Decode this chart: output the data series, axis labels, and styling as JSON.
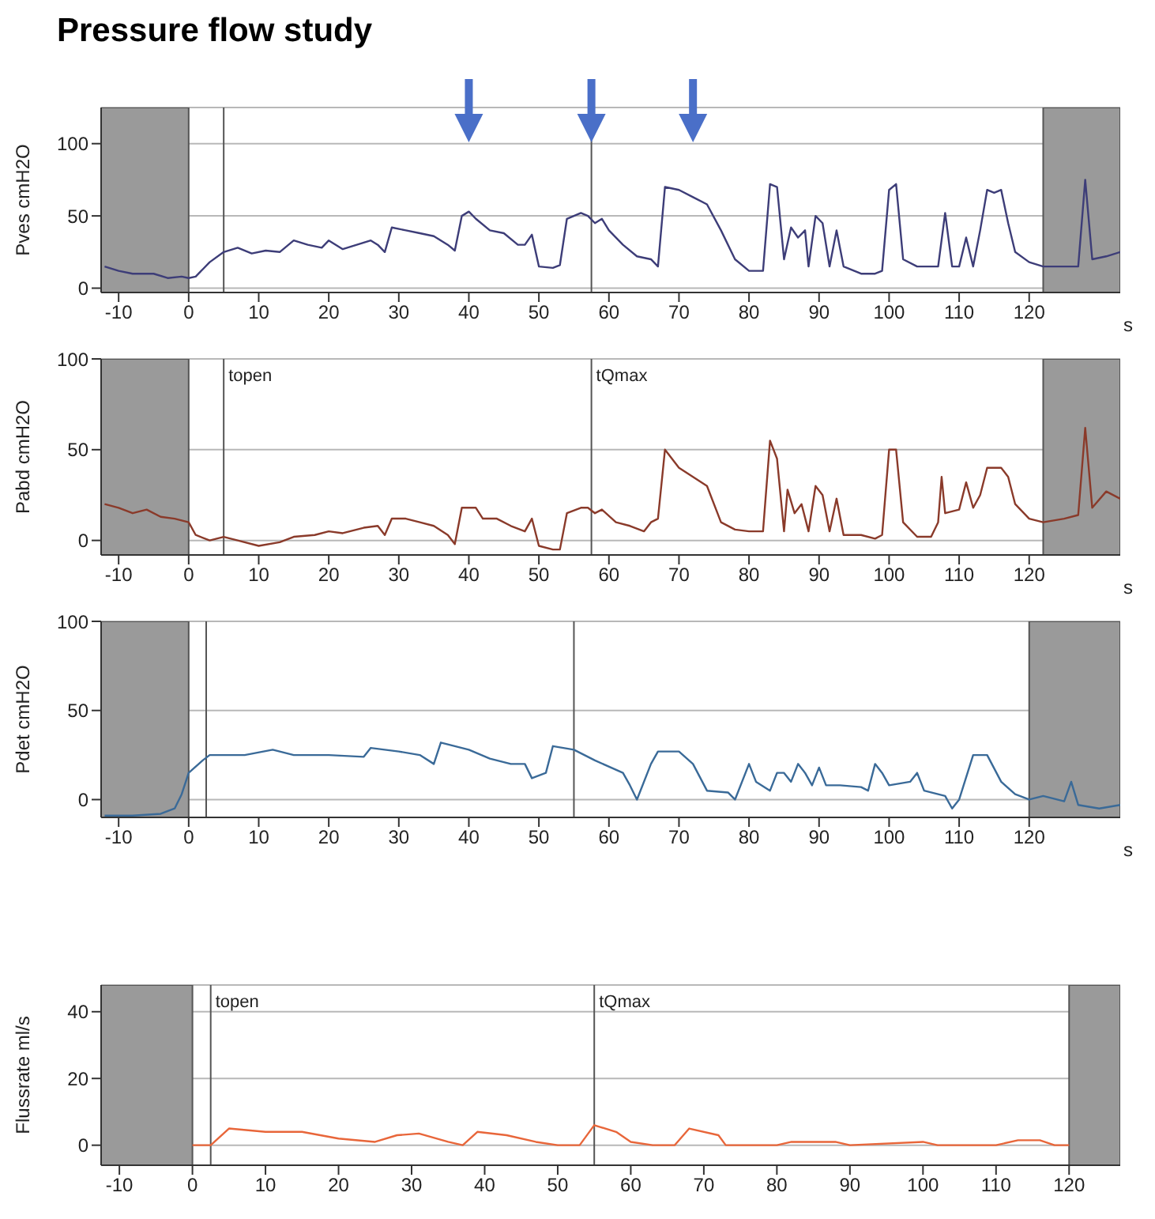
{
  "chart_data": [
    {
      "type": "line",
      "title": "Pressure flow study",
      "ylabel": "Pves cmH2O",
      "xlabel": "s",
      "xlim": [
        -12.5,
        133
      ],
      "ylim": [
        -3,
        125
      ],
      "xticks": [
        -10,
        0,
        10,
        20,
        30,
        40,
        50,
        60,
        70,
        80,
        90,
        100,
        110,
        120
      ],
      "yticks": [
        0,
        50,
        100
      ],
      "grid": "y",
      "marker": "none",
      "bands": [
        {
          "axis": "x",
          "from": -12.5,
          "to": 0,
          "color": "#9a9a9a"
        },
        {
          "axis": "x",
          "from": 122,
          "to": 133,
          "color": "#9a9a9a"
        }
      ],
      "ref_lines": [
        {
          "axis": "x",
          "value": 5,
          "label": null
        },
        {
          "axis": "x",
          "value": 57.5,
          "label": null
        }
      ],
      "x": [
        -12,
        -10,
        -8,
        -5,
        -3,
        -1,
        0,
        1,
        3,
        5,
        7,
        9,
        11,
        13,
        15,
        17,
        19,
        20,
        22,
        24,
        26,
        27,
        28,
        29,
        31,
        33,
        35,
        37,
        38,
        39,
        40,
        41,
        43,
        45,
        47,
        48,
        49,
        50,
        52,
        53,
        54,
        56,
        57,
        58,
        59,
        60,
        62,
        64,
        66,
        67,
        68,
        70,
        72,
        74,
        76,
        78,
        80,
        82,
        83,
        84,
        85,
        86,
        87,
        88,
        88.5,
        89.5,
        90.5,
        91.5,
        92.5,
        93.5,
        96,
        98,
        99,
        100,
        101,
        102,
        104,
        107,
        108,
        109,
        110,
        111,
        112,
        113,
        114,
        115,
        116,
        117,
        118,
        120,
        122,
        125,
        127,
        128,
        129,
        131,
        133
      ],
      "series": [
        {
          "color": "#3d3d78",
          "values": [
            15,
            12,
            10,
            10,
            7,
            8,
            7,
            8,
            18,
            25,
            28,
            24,
            26,
            25,
            33,
            30,
            28,
            33,
            27,
            30,
            33,
            30,
            25,
            42,
            40,
            38,
            36,
            30,
            26,
            50,
            53,
            48,
            40,
            38,
            30,
            30,
            37,
            15,
            14,
            16,
            48,
            52,
            50,
            45,
            48,
            40,
            30,
            22,
            20,
            15,
            70,
            68,
            63,
            58,
            40,
            20,
            12,
            12,
            72,
            70,
            20,
            42,
            35,
            40,
            15,
            50,
            45,
            15,
            40,
            15,
            10,
            10,
            12,
            68,
            72,
            20,
            15,
            15,
            52,
            15,
            15,
            35,
            15,
            40,
            68,
            66,
            68,
            45,
            25,
            18,
            15,
            15,
            15,
            75,
            20,
            22,
            25
          ]
        }
      ]
    },
    {
      "type": "line",
      "ylabel": "Pabd cmH2O",
      "xlabel": "s",
      "xlim": [
        -12.5,
        133
      ],
      "ylim": [
        -8,
        100
      ],
      "xticks": [
        -10,
        0,
        10,
        20,
        30,
        40,
        50,
        60,
        70,
        80,
        90,
        100,
        110,
        120
      ],
      "yticks": [
        0,
        50,
        100
      ],
      "grid": "y",
      "marker": "none",
      "bands": [
        {
          "axis": "x",
          "from": -12.5,
          "to": 0,
          "color": "#9a9a9a"
        },
        {
          "axis": "x",
          "from": 122,
          "to": 133,
          "color": "#9a9a9a"
        }
      ],
      "ref_lines": [
        {
          "axis": "x",
          "value": 5,
          "label": "topen"
        },
        {
          "axis": "x",
          "value": 57.5,
          "label": "tQmax"
        }
      ],
      "x": [
        -12,
        -10,
        -8,
        -6,
        -4,
        -2,
        0,
        1,
        3,
        5,
        7,
        10,
        13,
        15,
        18,
        20,
        22,
        25,
        27,
        28,
        29,
        31,
        33,
        35,
        37,
        38,
        39,
        41,
        42,
        44,
        46,
        48,
        49,
        50,
        52,
        53,
        54,
        56,
        57,
        58,
        59,
        61,
        63,
        65,
        66,
        67,
        68,
        70,
        72,
        74,
        76,
        78,
        80,
        82,
        83,
        84,
        85,
        85.5,
        86.5,
        87.5,
        88.5,
        89.5,
        90.5,
        91.5,
        92.5,
        93.5,
        96,
        98,
        99,
        100,
        101,
        102,
        104,
        106,
        107,
        107.5,
        108,
        110,
        111,
        112,
        113,
        114,
        116,
        117,
        118,
        120,
        122,
        125,
        127,
        128,
        129,
        131,
        133
      ],
      "series": [
        {
          "color": "#8a3a2a",
          "values": [
            20,
            18,
            15,
            17,
            13,
            12,
            10,
            3,
            0,
            2,
            0,
            -3,
            -1,
            2,
            3,
            5,
            4,
            7,
            8,
            3,
            12,
            12,
            10,
            8,
            3,
            -2,
            18,
            18,
            12,
            12,
            8,
            5,
            12,
            -3,
            -5,
            -5,
            15,
            18,
            18,
            15,
            17,
            10,
            8,
            5,
            10,
            12,
            50,
            40,
            35,
            30,
            10,
            6,
            5,
            5,
            55,
            45,
            5,
            28,
            15,
            20,
            5,
            30,
            25,
            5,
            23,
            3,
            3,
            1,
            3,
            50,
            50,
            10,
            2,
            2,
            10,
            35,
            15,
            17,
            32,
            18,
            25,
            40,
            40,
            35,
            20,
            12,
            10,
            12,
            14,
            62,
            18,
            27,
            23
          ]
        }
      ]
    },
    {
      "type": "line",
      "ylabel": "Pdet cmH2O",
      "xlabel": "s",
      "xlim": [
        -12.5,
        133
      ],
      "ylim": [
        -10,
        100
      ],
      "xticks": [
        -10,
        0,
        10,
        20,
        30,
        40,
        50,
        60,
        70,
        80,
        90,
        100,
        110,
        120
      ],
      "yticks": [
        0,
        50,
        100
      ],
      "grid": "y",
      "marker": "none",
      "bands": [
        {
          "axis": "x",
          "from": -12.5,
          "to": 0,
          "color": "#9a9a9a"
        },
        {
          "axis": "x",
          "from": 120,
          "to": 133,
          "color": "#9a9a9a"
        }
      ],
      "ref_lines": [
        {
          "axis": "x",
          "value": 2.5,
          "label": null
        },
        {
          "axis": "x",
          "value": 55,
          "label": null
        }
      ],
      "x": [
        -12,
        -8,
        -4,
        -2,
        -1,
        0,
        2,
        3,
        8,
        12,
        15,
        20,
        25,
        26,
        30,
        33,
        35,
        36,
        40,
        43,
        46,
        48,
        49,
        51,
        52,
        55,
        58,
        62,
        63,
        64,
        66,
        67,
        70,
        72,
        74,
        77,
        78,
        80,
        81,
        83,
        84,
        85,
        86,
        87,
        88,
        89,
        90,
        91,
        93,
        96,
        97,
        98,
        99,
        100,
        103,
        104,
        105,
        108,
        109,
        110,
        112,
        114,
        116,
        118,
        120,
        122,
        125,
        126,
        127,
        130,
        133
      ],
      "series": [
        {
          "color": "#3a6a98",
          "values": [
            -9,
            -9,
            -8,
            -5,
            3,
            15,
            22,
            25,
            25,
            28,
            25,
            25,
            24,
            29,
            27,
            25,
            20,
            32,
            28,
            23,
            20,
            20,
            12,
            15,
            30,
            28,
            22,
            15,
            8,
            0,
            20,
            27,
            27,
            20,
            5,
            4,
            0,
            20,
            10,
            5,
            15,
            15,
            10,
            20,
            15,
            8,
            18,
            8,
            8,
            7,
            5,
            20,
            15,
            8,
            10,
            15,
            5,
            2,
            -5,
            0,
            25,
            25,
            10,
            3,
            0,
            2,
            -1,
            10,
            -3,
            -5,
            -3
          ]
        }
      ]
    },
    {
      "type": "line",
      "ylabel": "Flussrate ml/s",
      "xlim": [
        -12.5,
        127
      ],
      "ylim": [
        -6,
        48
      ],
      "xticks": [
        -10,
        0,
        10,
        20,
        30,
        40,
        50,
        60,
        70,
        80,
        90,
        100,
        110,
        120
      ],
      "yticks": [
        0,
        20,
        40
      ],
      "grid": "y",
      "marker": "none",
      "bands": [
        {
          "axis": "x",
          "from": -12.5,
          "to": 0,
          "color": "#9a9a9a"
        },
        {
          "axis": "x",
          "from": 120,
          "to": 127,
          "color": "#9a9a9a"
        }
      ],
      "ref_lines": [
        {
          "axis": "x",
          "value": 2.5,
          "label": "topen"
        },
        {
          "axis": "x",
          "value": 55,
          "label": "tQmax"
        }
      ],
      "x": [
        0,
        2.5,
        5,
        10,
        15,
        20,
        25,
        28,
        31,
        35,
        37,
        39,
        43,
        47,
        50,
        53,
        55,
        58,
        60,
        63,
        66,
        68,
        72,
        73,
        80,
        82,
        88,
        90,
        100,
        102,
        110,
        113,
        116,
        118,
        120
      ],
      "series": [
        {
          "color": "#e8663a",
          "values": [
            0,
            0,
            5,
            4,
            4,
            2,
            1,
            3,
            3.5,
            1,
            0,
            4,
            3,
            1,
            0,
            0,
            6,
            4,
            1,
            0,
            0,
            5,
            3,
            0,
            0,
            1,
            1,
            0,
            1,
            0,
            0,
            1.5,
            1.5,
            0,
            0
          ]
        }
      ]
    }
  ]
}
